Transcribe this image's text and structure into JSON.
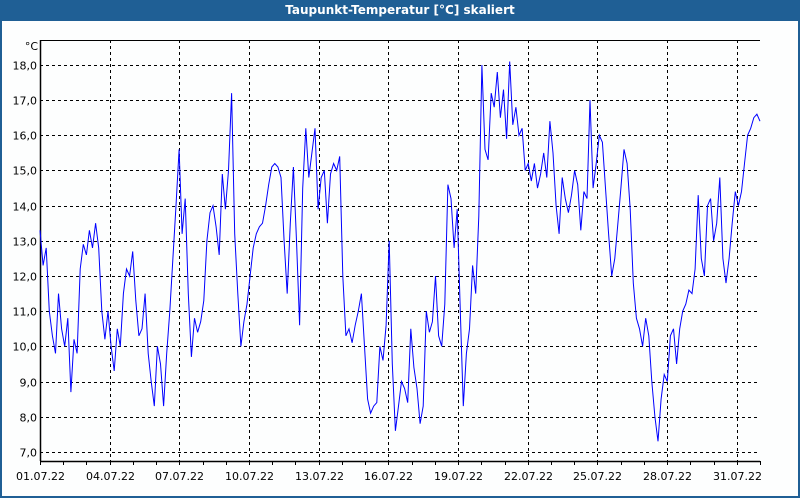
{
  "window": {
    "title": "Taupunkt-Temperatur [°C] skaliert"
  },
  "chart_data": {
    "type": "line",
    "title": "Taupunkt-Temperatur [°C] skaliert",
    "ylabel": "°C",
    "xlabel": "",
    "ylim": [
      6.74,
      18.71
    ],
    "xlim_days": [
      0,
      31
    ],
    "y_ticks": [
      "7,0",
      "8,0",
      "9,0",
      "10,0",
      "11,0",
      "12,0",
      "13,0",
      "14,0",
      "15,0",
      "16,0",
      "17,0",
      "18,0"
    ],
    "y_tick_values": [
      7,
      8,
      9,
      10,
      11,
      12,
      13,
      14,
      15,
      16,
      17,
      18
    ],
    "x_ticks": [
      "01.07.22",
      "04.07.22",
      "07.07.22",
      "10.07.22",
      "13.07.22",
      "16.07.22",
      "19.07.22",
      "22.07.22",
      "25.07.22",
      "28.07.22",
      "31.07.22"
    ],
    "x_tick_days": [
      0,
      3,
      6,
      9,
      12,
      15,
      18,
      21,
      24,
      27,
      30
    ],
    "grid": true,
    "line_color": "#0000ff",
    "series": [
      {
        "name": "Taupunkt",
        "values": [
          13.3,
          12.3,
          12.8,
          11,
          10.3,
          9.8,
          11.5,
          10.5,
          10,
          10.8,
          8.7,
          10.2,
          9.8,
          12.2,
          12.9,
          12.6,
          13.3,
          12.8,
          13.5,
          12.8,
          11,
          10.2,
          11,
          10,
          9.3,
          10.5,
          10,
          11.5,
          12.2,
          12,
          12.7,
          11.3,
          10.3,
          10.5,
          11.5,
          9.8,
          9,
          8.3,
          10,
          9.5,
          8.3,
          9.8,
          11,
          12.5,
          14,
          15.6,
          13.2,
          14.2,
          11.5,
          9.7,
          10.8,
          10.4,
          10.7,
          11.3,
          13,
          13.8,
          14,
          13.4,
          12.6,
          14.9,
          13.9,
          15,
          17.2,
          13.2,
          11.5,
          10,
          10.7,
          11.2,
          12,
          12.8,
          13.2,
          13.4,
          13.5,
          14,
          14.6,
          15.1,
          15.2,
          15.1,
          14.8,
          13,
          11.5,
          13.5,
          15.1,
          13,
          10.6,
          14.5,
          16.2,
          14.8,
          15.5,
          16.2,
          13.9,
          14.8,
          15,
          13.5,
          14.9,
          15.2,
          15,
          15.4,
          12,
          10.3,
          10.5,
          10.1,
          10.6,
          11,
          11.5,
          10,
          8.5,
          8.1,
          8.3,
          8.4,
          10,
          9.6,
          10.6,
          13,
          9.5,
          7.6,
          8.3,
          9,
          8.8,
          8.4,
          10.5,
          9.4,
          8.8,
          7.8,
          8.3,
          11,
          10.4,
          10.7,
          12,
          10.3,
          10,
          11.2,
          14.6,
          14.2,
          12.8,
          13.9,
          11,
          8.3,
          9.8,
          10.5,
          12.3,
          11.5,
          13.7,
          18,
          15.6,
          15.3,
          17.2,
          16.8,
          17.8,
          16.5,
          17.3,
          15.9,
          18.1,
          16.3,
          16.8,
          16,
          16.2,
          15,
          15.2,
          14.7,
          15.2,
          14.5,
          14.9,
          15.5,
          14.8,
          16.4,
          15.5,
          14,
          13.2,
          14.8,
          14.2,
          13.8,
          14.3,
          15,
          14.6,
          13.3,
          14.4,
          14.2,
          17,
          14.5,
          15.2,
          16,
          15.8,
          14.5,
          13.2,
          12,
          12.5,
          13.5,
          14.5,
          15.6,
          15.2,
          13.9,
          11.8,
          10.8,
          10.5,
          10,
          10.8,
          10.3,
          9,
          8,
          7.3,
          8.5,
          9.2,
          9,
          10.3,
          10.5,
          9.5,
          10.5,
          11,
          11.2,
          11.6,
          11.5,
          12.2,
          14.3,
          12.5,
          12,
          14,
          14.2,
          13,
          13.5,
          14.8,
          12.5,
          11.8,
          12.5,
          13.5,
          14.4,
          14,
          14.4,
          15.2,
          16,
          16.2,
          16.5,
          16.6,
          16.4
        ]
      }
    ]
  }
}
